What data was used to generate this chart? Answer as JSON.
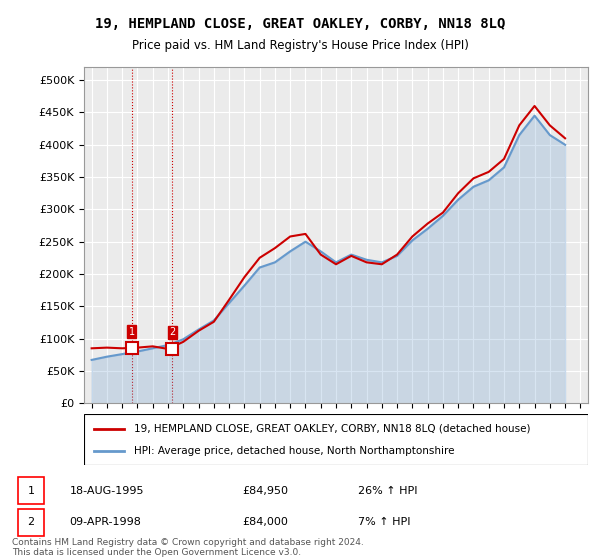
{
  "title": "19, HEMPLAND CLOSE, GREAT OAKLEY, CORBY, NN18 8LQ",
  "subtitle": "Price paid vs. HM Land Registry's House Price Index (HPI)",
  "legend_line1": "19, HEMPLAND CLOSE, GREAT OAKLEY, CORBY, NN18 8LQ (detached house)",
  "legend_line2": "HPI: Average price, detached house, North Northamptonshire",
  "footer": "Contains HM Land Registry data © Crown copyright and database right 2024.\nThis data is licensed under the Open Government Licence v3.0.",
  "table": [
    {
      "num": "1",
      "date": "18-AUG-1995",
      "price": "£84,950",
      "change": "26% ↑ HPI"
    },
    {
      "num": "2",
      "date": "09-APR-1998",
      "price": "£84,000",
      "change": "7% ↑ HPI"
    }
  ],
  "ylabel_ticks": [
    0,
    50000,
    100000,
    150000,
    200000,
    250000,
    300000,
    350000,
    400000,
    450000,
    500000
  ],
  "ylabel_labels": [
    "£0",
    "£50K",
    "£100K",
    "£150K",
    "£200K",
    "£250K",
    "£300K",
    "£350K",
    "£400K",
    "£450K",
    "£500K"
  ],
  "price_color": "#cc0000",
  "hpi_color": "#6699cc",
  "marker1_year": 1995.63,
  "marker2_year": 1998.27,
  "marker1_price": 84950,
  "marker2_price": 84000,
  "hpi_data": {
    "years": [
      1993,
      1994,
      1995,
      1996,
      1997,
      1998,
      1999,
      2000,
      2001,
      2002,
      2003,
      2004,
      2005,
      2006,
      2007,
      2008,
      2009,
      2010,
      2011,
      2012,
      2013,
      2014,
      2015,
      2016,
      2017,
      2018,
      2019,
      2020,
      2021,
      2022,
      2023,
      2024
    ],
    "values": [
      67000,
      72000,
      76000,
      80000,
      85000,
      90000,
      99000,
      114000,
      128000,
      155000,
      182000,
      210000,
      218000,
      235000,
      250000,
      235000,
      218000,
      230000,
      222000,
      218000,
      228000,
      252000,
      270000,
      290000,
      315000,
      335000,
      345000,
      365000,
      415000,
      445000,
      415000,
      400000
    ]
  },
  "price_data": {
    "years": [
      1993,
      1994,
      1995,
      1996,
      1997,
      1998,
      1999,
      2000,
      2001,
      2002,
      2003,
      2004,
      2005,
      2006,
      2007,
      2008,
      2009,
      2010,
      2011,
      2012,
      2013,
      2014,
      2015,
      2016,
      2017,
      2018,
      2019,
      2020,
      2021,
      2022,
      2023,
      2024
    ],
    "values": [
      84950,
      86000,
      84950,
      86000,
      88000,
      84000,
      95000,
      112000,
      126000,
      160000,
      195000,
      225000,
      240000,
      258000,
      262000,
      230000,
      215000,
      228000,
      218000,
      215000,
      230000,
      258000,
      278000,
      295000,
      325000,
      348000,
      358000,
      378000,
      430000,
      460000,
      430000,
      410000
    ]
  },
  "xlim": [
    1992.5,
    2025.5
  ],
  "ylim": [
    0,
    520000
  ],
  "bg_color": "#ffffff",
  "grid_color": "#cccccc",
  "hatch_color": "#e8e8e8"
}
